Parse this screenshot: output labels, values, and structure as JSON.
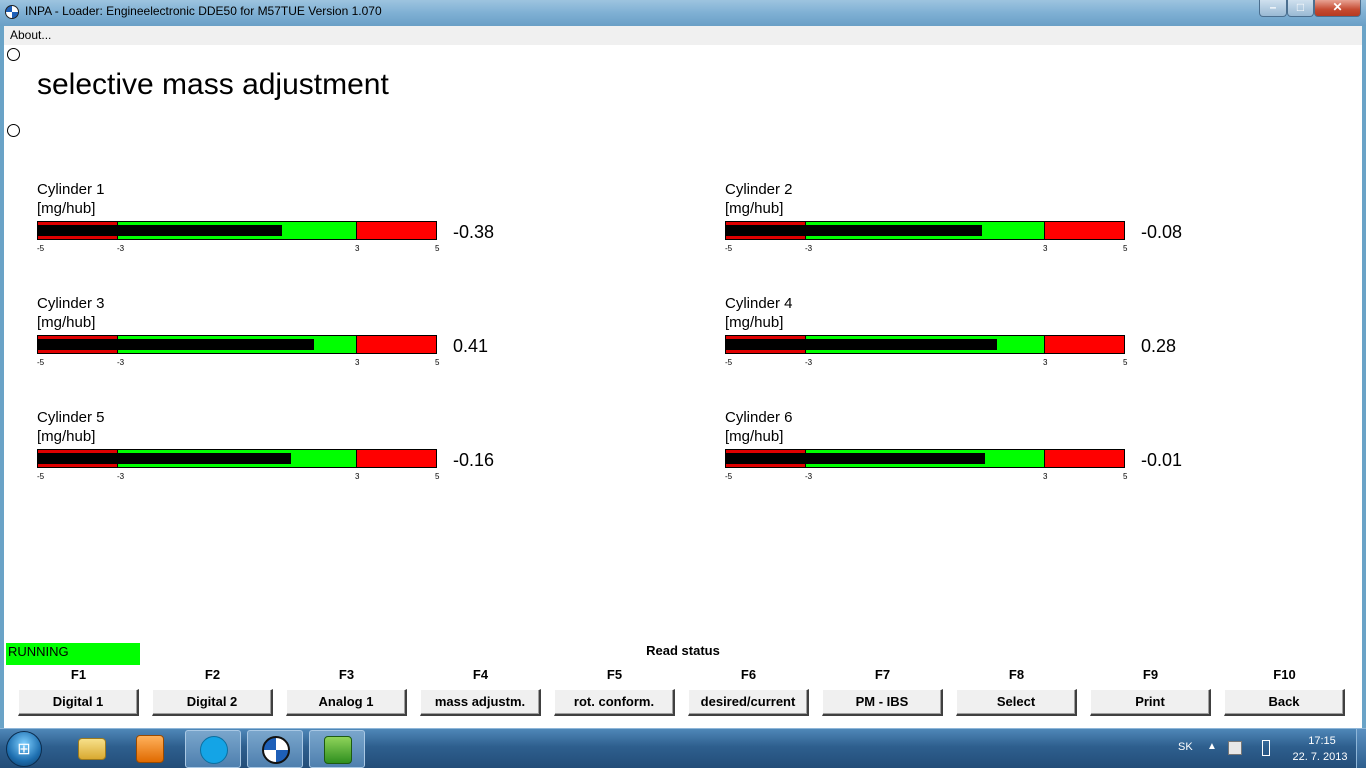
{
  "window": {
    "title": "INPA - Loader:  Engineelectronic DDE50 for M57TUE Version 1.070",
    "min_glyph": "–",
    "max_glyph": "□",
    "close_glyph": "✕"
  },
  "menu": {
    "about": "About..."
  },
  "heading": "selective mass adjustment",
  "cylinders": [
    {
      "title": "Cylinder 1",
      "unit": "[mg/hub]",
      "value": "-0.38",
      "value_num": -0.38
    },
    {
      "title": "Cylinder 2",
      "unit": "[mg/hub]",
      "value": "-0.08",
      "value_num": -0.08
    },
    {
      "title": "Cylinder 3",
      "unit": "[mg/hub]",
      "value": "0.41",
      "value_num": 0.41
    },
    {
      "title": "Cylinder 4",
      "unit": "[mg/hub]",
      "value": "0.28",
      "value_num": 0.28
    },
    {
      "title": "Cylinder 5",
      "unit": "[mg/hub]",
      "value": "-0.16",
      "value_num": -0.16
    },
    {
      "title": "Cylinder 6",
      "unit": "[mg/hub]",
      "value": "-0.01",
      "value_num": -0.01
    }
  ],
  "scale": {
    "min": -5,
    "warn_low": -3,
    "warn_high": 3,
    "max": 5,
    "tick_labels": [
      "-5",
      "-3",
      "3",
      "5"
    ]
  },
  "colors": {
    "ok": "#00ff00",
    "danger": "#ff0000",
    "running": "#00ff00"
  },
  "status": {
    "state": "RUNNING",
    "label": "Read status"
  },
  "function_keys": [
    {
      "key": "F1",
      "label": "Digital 1"
    },
    {
      "key": "F2",
      "label": "Digital 2"
    },
    {
      "key": "F3",
      "label": "Analog 1"
    },
    {
      "key": "F4",
      "label": "mass adjustm."
    },
    {
      "key": "F5",
      "label": "rot. conform."
    },
    {
      "key": "F6",
      "label": "desired/current"
    },
    {
      "key": "F7",
      "label": "PM - IBS"
    },
    {
      "key": "F8",
      "label": "Select"
    },
    {
      "key": "F9",
      "label": "Print"
    },
    {
      "key": "F10",
      "label": "Back"
    }
  ],
  "taskbar": {
    "apps": [
      {
        "name": "explorer",
        "icon": "folder-icon"
      },
      {
        "name": "media-player",
        "icon": "media-player-icon"
      },
      {
        "name": "skype",
        "icon": "skype-icon"
      },
      {
        "name": "inpa",
        "icon": "bmw-icon"
      },
      {
        "name": "ediabas",
        "icon": "ediabas-icon"
      }
    ],
    "language": "SK",
    "tray_arrow": "▲",
    "time": "17:15",
    "date": "22. 7. 2013",
    "start_glyph": "⊞"
  }
}
